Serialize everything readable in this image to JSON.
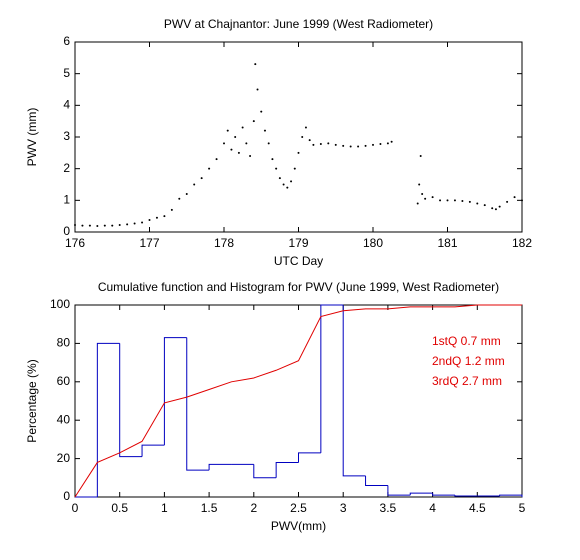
{
  "chart_data": [
    {
      "type": "scatter",
      "title": "PWV at Chajnantor: June 1999 (West Radiometer)",
      "x_label": "UTC Day",
      "y_label": "PWV (mm)",
      "color": "#000000",
      "xlim": [
        176,
        182
      ],
      "ylim": [
        0,
        6
      ],
      "xticks": [
        176,
        177,
        178,
        179,
        180,
        181,
        182
      ],
      "yticks": [
        0,
        1,
        2,
        3,
        4,
        5,
        6
      ],
      "x": [
        176.0,
        176.1,
        176.2,
        176.3,
        176.4,
        176.5,
        176.6,
        176.7,
        176.8,
        176.9,
        177.0,
        177.1,
        177.2,
        177.3,
        177.4,
        177.5,
        177.6,
        177.7,
        177.8,
        177.9,
        178.0,
        178.05,
        178.1,
        178.15,
        178.2,
        178.25,
        178.3,
        178.35,
        178.4,
        178.42,
        178.45,
        178.5,
        178.55,
        178.6,
        178.65,
        178.7,
        178.75,
        178.8,
        178.85,
        178.9,
        178.95,
        179.0,
        179.05,
        179.1,
        179.15,
        179.2,
        179.3,
        179.4,
        179.5,
        179.6,
        179.7,
        179.8,
        179.9,
        180.0,
        180.1,
        180.2,
        180.25,
        180.6,
        180.62,
        180.64,
        180.66,
        180.7,
        180.8,
        180.9,
        181.0,
        181.1,
        181.2,
        181.3,
        181.4,
        181.5,
        181.6,
        181.65,
        181.7,
        181.8,
        181.9,
        182.0
      ],
      "values": [
        0.22,
        0.2,
        0.2,
        0.19,
        0.2,
        0.2,
        0.22,
        0.24,
        0.27,
        0.3,
        0.38,
        0.45,
        0.5,
        0.7,
        1.05,
        1.2,
        1.5,
        1.7,
        2.0,
        2.3,
        2.8,
        3.2,
        2.6,
        3.0,
        2.5,
        3.3,
        2.8,
        2.4,
        3.5,
        5.3,
        4.5,
        3.8,
        3.2,
        2.8,
        2.3,
        2.0,
        1.7,
        1.5,
        1.4,
        1.6,
        2.0,
        2.5,
        3.0,
        3.3,
        2.9,
        2.75,
        2.78,
        2.8,
        2.75,
        2.72,
        2.7,
        2.7,
        2.72,
        2.75,
        2.78,
        2.8,
        2.85,
        0.9,
        1.5,
        2.4,
        1.2,
        1.05,
        1.1,
        1.0,
        1.0,
        1.0,
        0.98,
        0.95,
        0.9,
        0.85,
        0.75,
        0.72,
        0.8,
        0.95,
        1.1,
        1.0
      ]
    },
    {
      "type": "histogram",
      "title": "Cumulative function and Histogram for PWV (June 1999, West Radiometer)",
      "x_label": "PWV(mm)",
      "y_label": "Percentage (%)",
      "color": "#0000c0",
      "xlim": [
        0,
        5
      ],
      "ylim": [
        0,
        100
      ],
      "xticks": [
        0,
        0.5,
        1,
        1.5,
        2,
        2.5,
        3,
        3.5,
        4,
        4.5,
        5
      ],
      "yticks": [
        0,
        20,
        40,
        60,
        80,
        100
      ],
      "bins": [
        0,
        0.25,
        0.5,
        0.75,
        1,
        1.25,
        1.5,
        1.75,
        2,
        2.25,
        2.5,
        2.75,
        3,
        3.25,
        3.5,
        3.75,
        4,
        4.25,
        4.5,
        4.75,
        5
      ],
      "counts": [
        0,
        80,
        21,
        27,
        83,
        14,
        17,
        17,
        10,
        18,
        23,
        100,
        11,
        6,
        1,
        2,
        1,
        0.5,
        0.5,
        1
      ],
      "cumulative": {
        "color": "#e00000",
        "x": [
          0,
          0.25,
          0.5,
          0.75,
          1,
          1.25,
          1.5,
          1.75,
          2,
          2.25,
          2.5,
          2.75,
          3,
          3.25,
          3.5,
          3.75,
          4,
          4.25,
          4.5,
          4.75,
          5
        ],
        "values": [
          0,
          18,
          23,
          29,
          49,
          52,
          56,
          60,
          62,
          66,
          71,
          94,
          97,
          98,
          98,
          99,
          99,
          99,
          100,
          100,
          100
        ]
      },
      "annotation_color": "#e00000",
      "annotations": [
        "1stQ 0.7 mm",
        "2ndQ 1.2 mm",
        "3rdQ 2.7 mm"
      ]
    }
  ]
}
